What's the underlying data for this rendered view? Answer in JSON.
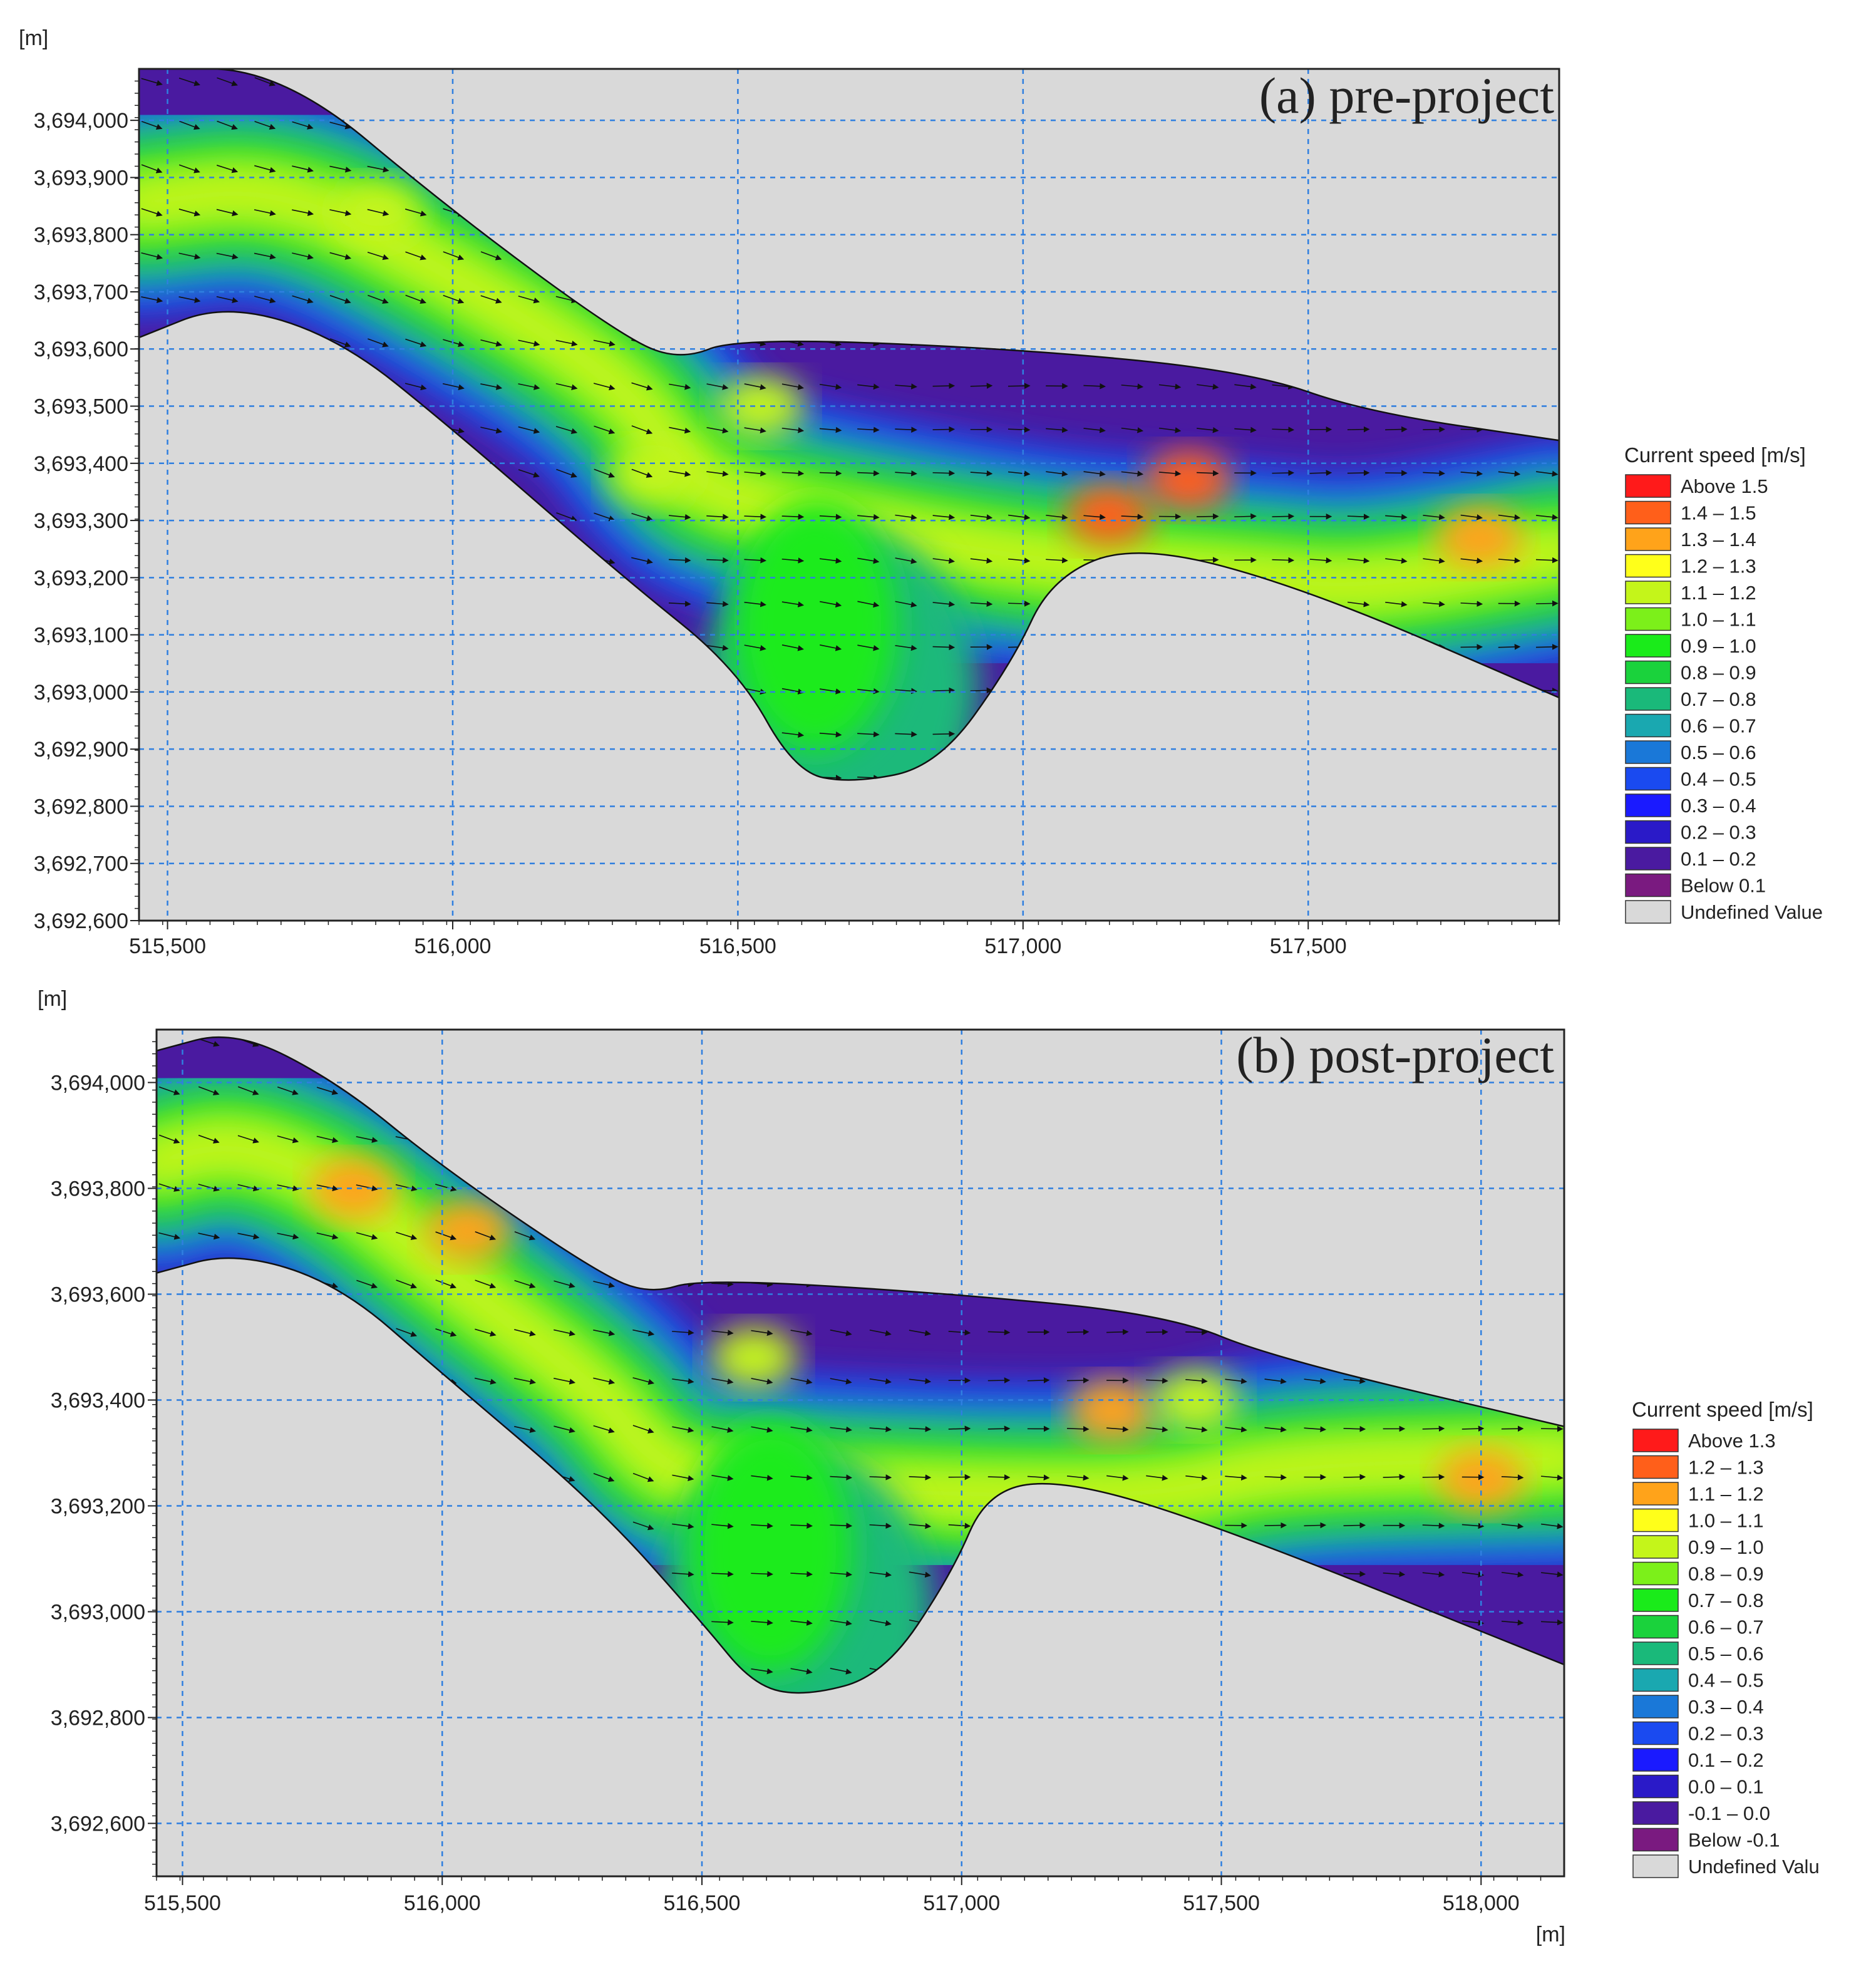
{
  "colors": {
    "background": "#d9d9d9",
    "grid": "#2f7fe0",
    "frame": "#222222",
    "shore": "#111111",
    "arrow": "#111111"
  },
  "chart_data": [
    {
      "type": "heatmap",
      "panel": "a",
      "title": "(a) pre-project",
      "unit_label": "[m]",
      "x_unit_label": "",
      "xlim": [
        515450,
        517940
      ],
      "ylim": [
        3692600,
        3694090
      ],
      "xticks": [
        515500,
        516000,
        516500,
        517000,
        517500
      ],
      "xtick_labels": [
        "515,500",
        "516,000",
        "516,500",
        "517,000",
        "517,500"
      ],
      "yticks": [
        3692600,
        3692700,
        3692800,
        3692900,
        3693000,
        3693100,
        3693200,
        3693300,
        3693400,
        3693500,
        3693600,
        3693700,
        3693800,
        3693900,
        3694000
      ],
      "ytick_labels": [
        "3,692,600",
        "3,692,700",
        "3,692,800",
        "3,692,900",
        "3,693,000",
        "3,693,100",
        "3,693,200",
        "3,693,300",
        "3,693,400",
        "3,693,500",
        "3,693,600",
        "3,693,700",
        "3,693,800",
        "3,693,900",
        "3,694,000"
      ],
      "grid": true,
      "legend_placement": "right",
      "legend_title": "Current speed [m/s]",
      "legend": [
        {
          "label": "Above 1.5",
          "color": "#ff1a1a"
        },
        {
          "label": "1.4 – 1.5",
          "color": "#ff5f1a"
        },
        {
          "label": "1.3 – 1.4",
          "color": "#ffa31a"
        },
        {
          "label": "1.2 – 1.3",
          "color": "#ffff1a"
        },
        {
          "label": "1.1 – 1.2",
          "color": "#c4f51a"
        },
        {
          "label": "1.0 – 1.1",
          "color": "#7cf01a"
        },
        {
          "label": "0.9 – 1.0",
          "color": "#1aeb1a"
        },
        {
          "label": "0.8 – 0.9",
          "color": "#1ad23c"
        },
        {
          "label": "0.7 – 0.8",
          "color": "#1ab97a"
        },
        {
          "label": "0.6 – 0.7",
          "color": "#1aa8b0"
        },
        {
          "label": "0.5 – 0.6",
          "color": "#1a78d8"
        },
        {
          "label": "0.4 – 0.5",
          "color": "#1a4af0"
        },
        {
          "label": "0.3 – 0.4",
          "color": "#1a1aff"
        },
        {
          "label": "0.2 – 0.3",
          "color": "#2a1ac8"
        },
        {
          "label": "0.1 – 0.2",
          "color": "#4a1aa0"
        },
        {
          "label": "Below 0.1",
          "color": "#7a1a80"
        },
        {
          "label": "Undefined Value",
          "color": "#d9d9d9"
        }
      ],
      "channel": {
        "north_bank": [
          [
            515450,
            3694090
          ],
          [
            515700,
            3694090
          ],
          [
            516000,
            3693840
          ],
          [
            516300,
            3693620
          ],
          [
            516400,
            3693580
          ],
          [
            516500,
            3693620
          ],
          [
            517000,
            3693600
          ],
          [
            517400,
            3693560
          ],
          [
            517600,
            3693490
          ],
          [
            517940,
            3693440
          ]
        ],
        "south_bank": [
          [
            515450,
            3693620
          ],
          [
            515600,
            3693680
          ],
          [
            515800,
            3693620
          ],
          [
            516000,
            3693460
          ],
          [
            516300,
            3693200
          ],
          [
            516500,
            3693040
          ],
          [
            516600,
            3692860
          ],
          [
            516700,
            3692840
          ],
          [
            516850,
            3692870
          ],
          [
            516980,
            3693050
          ],
          [
            517050,
            3693200
          ],
          [
            517200,
            3693260
          ],
          [
            517500,
            3693180
          ],
          [
            517940,
            3692990
          ]
        ],
        "hotspots": [
          {
            "x": 517150,
            "y": 3693310,
            "speed": 1.45
          },
          {
            "x": 517290,
            "y": 3693370,
            "speed": 1.4
          },
          {
            "x": 516540,
            "y": 3693500,
            "speed": 1.15
          },
          {
            "x": 515870,
            "y": 3693840,
            "speed": 1.1
          },
          {
            "x": 516350,
            "y": 3693380,
            "speed": 1.1
          },
          {
            "x": 517800,
            "y": 3693270,
            "speed": 1.2
          }
        ]
      }
    },
    {
      "type": "heatmap",
      "panel": "b",
      "title": "(b) post-project",
      "unit_label": "[m]",
      "x_unit_label": "[m]",
      "xlim": [
        515450,
        518160
      ],
      "ylim": [
        3692500,
        3694100
      ],
      "xticks": [
        515500,
        516000,
        516500,
        517000,
        517500,
        518000
      ],
      "xtick_labels": [
        "515,500",
        "516,000",
        "516,500",
        "517,000",
        "517,500",
        "518,000"
      ],
      "yticks": [
        3692600,
        3692800,
        3693000,
        3693200,
        3693400,
        3693600,
        3693800,
        3694000
      ],
      "ytick_labels": [
        "3,692,600",
        "3,692,800",
        "3,693,000",
        "3,693,200",
        "3,693,400",
        "3,693,600",
        "3,693,800",
        "3,694,000"
      ],
      "grid": true,
      "legend_placement": "right",
      "legend_title": "Current speed [m/s]",
      "legend": [
        {
          "label": "Above  1.3",
          "color": "#ff1a1a"
        },
        {
          "label": "1.2 – 1.3",
          "color": "#ff5f1a"
        },
        {
          "label": "1.1 – 1.2",
          "color": "#ffa31a"
        },
        {
          "label": "1.0 – 1.1",
          "color": "#ffff1a"
        },
        {
          "label": "0.9 – 1.0",
          "color": "#c4f51a"
        },
        {
          "label": "0.8 – 0.9",
          "color": "#7cf01a"
        },
        {
          "label": "0.7 – 0.8",
          "color": "#1aeb1a"
        },
        {
          "label": "0.6 – 0.7",
          "color": "#1ad23c"
        },
        {
          "label": "0.5 – 0.6",
          "color": "#1ab97a"
        },
        {
          "label": "0.4 – 0.5",
          "color": "#1aa8b0"
        },
        {
          "label": "0.3 – 0.4",
          "color": "#1a78d8"
        },
        {
          "label": "0.2 – 0.3",
          "color": "#1a4af0"
        },
        {
          "label": "0.1 – 0.2",
          "color": "#1a1aff"
        },
        {
          "label": "0.0 – 0.1",
          "color": "#2a1ac8"
        },
        {
          "label": "-0.1 – 0.0",
          "color": "#4a1aa0"
        },
        {
          "label": "Below -0.1",
          "color": "#7a1a80"
        },
        {
          "label": "Undefined Valu",
          "color": "#d9d9d9"
        }
      ],
      "channel": {
        "north_bank": [
          [
            515450,
            3694060
          ],
          [
            515600,
            3694100
          ],
          [
            515800,
            3694000
          ],
          [
            516000,
            3693840
          ],
          [
            516300,
            3693640
          ],
          [
            516400,
            3693600
          ],
          [
            516500,
            3693630
          ],
          [
            517000,
            3693600
          ],
          [
            517400,
            3693560
          ],
          [
            517600,
            3693480
          ],
          [
            518160,
            3693350
          ]
        ],
        "south_bank": [
          [
            515450,
            3693640
          ],
          [
            515600,
            3693680
          ],
          [
            515800,
            3693620
          ],
          [
            516000,
            3693450
          ],
          [
            516300,
            3693200
          ],
          [
            516500,
            3692980
          ],
          [
            516600,
            3692860
          ],
          [
            516700,
            3692840
          ],
          [
            516850,
            3692880
          ],
          [
            516980,
            3693070
          ],
          [
            517050,
            3693230
          ],
          [
            517200,
            3693250
          ],
          [
            517500,
            3693160
          ],
          [
            518160,
            3692900
          ]
        ],
        "hotspots": [
          {
            "x": 515830,
            "y": 3693800,
            "speed": 1.2
          },
          {
            "x": 516050,
            "y": 3693720,
            "speed": 1.25
          },
          {
            "x": 517290,
            "y": 3693380,
            "speed": 1.25
          },
          {
            "x": 517450,
            "y": 3693400,
            "speed": 1.15
          },
          {
            "x": 518000,
            "y": 3693250,
            "speed": 1.2
          },
          {
            "x": 516600,
            "y": 3693480,
            "speed": 1.0
          }
        ]
      }
    }
  ]
}
